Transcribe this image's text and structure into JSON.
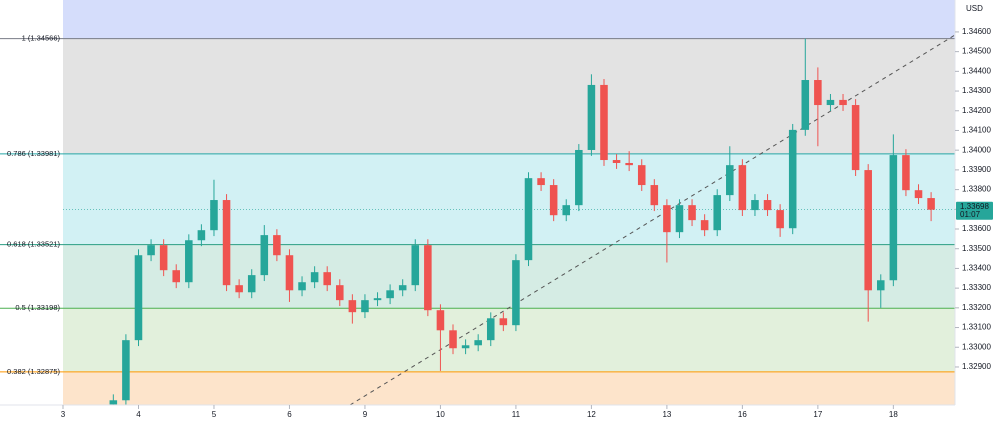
{
  "chart_data": {
    "type": "candlestick",
    "currency": "USD",
    "xlim": [
      0,
      70.9
    ],
    "xticks": [
      {
        "value": 0,
        "label": "3"
      },
      {
        "value": 6,
        "label": "4"
      },
      {
        "value": 12,
        "label": "5"
      },
      {
        "value": 18,
        "label": "6"
      },
      {
        "value": 24,
        "label": "9"
      },
      {
        "value": 30,
        "label": "10"
      },
      {
        "value": 36,
        "label": "11"
      },
      {
        "value": 42,
        "label": "12"
      },
      {
        "value": 48,
        "label": "13"
      },
      {
        "value": 54,
        "label": "16"
      },
      {
        "value": 60,
        "label": "17"
      },
      {
        "value": 66,
        "label": "18"
      }
    ],
    "ylim": [
      1.32707,
      1.34762
    ],
    "yticks": [
      {
        "value": 1.329,
        "label": "1.32900"
      },
      {
        "value": 1.33,
        "label": "1.33000"
      },
      {
        "value": 1.331,
        "label": "1.33100"
      },
      {
        "value": 1.332,
        "label": "1.33200"
      },
      {
        "value": 1.333,
        "label": "1.33300"
      },
      {
        "value": 1.334,
        "label": "1.33400"
      },
      {
        "value": 1.335,
        "label": "1.33500"
      },
      {
        "value": 1.336,
        "label": "1.33600"
      },
      {
        "value": 1.337,
        "label": "1.33700"
      },
      {
        "value": 1.338,
        "label": "1.33800"
      },
      {
        "value": 1.339,
        "label": "1.33900"
      },
      {
        "value": 1.34,
        "label": "1.34000"
      },
      {
        "value": 1.341,
        "label": "1.34100"
      },
      {
        "value": 1.342,
        "label": "1.34200"
      },
      {
        "value": 1.343,
        "label": "1.34300"
      },
      {
        "value": 1.344,
        "label": "1.34400"
      },
      {
        "value": 1.345,
        "label": "1.34500"
      },
      {
        "value": 1.346,
        "label": "1.34600"
      }
    ],
    "up_color": "#26a69a",
    "down_color": "#ef5350",
    "top_band_color": "#d5ddfb",
    "fib_levels": [
      {
        "label": "1 (1.34566)",
        "value": 1.34566,
        "color": "#787b86",
        "fill": "#e3e3e3"
      },
      {
        "label": "0.786 (1.33981)",
        "value": 1.33981,
        "color": "#26a6a6",
        "fill": "#d2f1f4"
      },
      {
        "label": "0.618 (1.33521)",
        "value": 1.33521,
        "color": "#2a9d82",
        "fill": "#d5ece4"
      },
      {
        "label": "0.5 (1.33198)",
        "value": 1.33198,
        "color": "#4caf50",
        "fill": "#e2f0dc"
      },
      {
        "label": "0.382 (1.32875)",
        "value": 1.32875,
        "color": "#ff9800",
        "fill": "#fde4cb"
      }
    ],
    "last_price": 1.33698,
    "countdown": "01:07",
    "candles": {
      "x": [
        4,
        5,
        6,
        7,
        8,
        9,
        10,
        11,
        12,
        13,
        14,
        15,
        16,
        17,
        18,
        19,
        20,
        21,
        22,
        23,
        24,
        25,
        26,
        27,
        28,
        29,
        30,
        31,
        32,
        33,
        34,
        35,
        36,
        37,
        38,
        39,
        40,
        41,
        42,
        43,
        44,
        45,
        46,
        47,
        48,
        49,
        50,
        51,
        52,
        53,
        54,
        55,
        56,
        57,
        58,
        59,
        60,
        61,
        62,
        63,
        64,
        65,
        66,
        67,
        68,
        69
      ],
      "open": [
        1.3271,
        1.32731,
        1.33036,
        1.33467,
        1.33518,
        1.33391,
        1.3333,
        1.33543,
        1.33594,
        1.33747,
        1.33315,
        1.33279,
        1.33366,
        1.33569,
        1.33467,
        1.33289,
        1.3333,
        1.33381,
        1.33315,
        1.33239,
        1.33178,
        1.33239,
        1.33249,
        1.33289,
        1.33315,
        1.33518,
        1.33188,
        1.33086,
        1.32995,
        1.3301,
        1.33036,
        1.33147,
        1.33112,
        1.33442,
        1.33858,
        1.33823,
        1.3367,
        1.33721,
        1.34001,
        1.34331,
        1.3395,
        1.33935,
        1.33924,
        1.33823,
        1.33721,
        1.33584,
        1.33721,
        1.33645,
        1.33594,
        1.33772,
        1.33924,
        1.33696,
        1.33747,
        1.33696,
        1.33604,
        1.34103,
        1.34356,
        1.34229,
        1.34255,
        1.34229,
        1.33899,
        1.33289,
        1.3334,
        1.33975,
        1.33797,
        1.33757
      ],
      "high": [
        1.32761,
        1.33066,
        1.33497,
        1.33548,
        1.33548,
        1.33421,
        1.33573,
        1.33624,
        1.3385,
        1.33777,
        1.33345,
        1.33396,
        1.3362,
        1.33599,
        1.33497,
        1.3336,
        1.33411,
        1.33411,
        1.33345,
        1.33269,
        1.33269,
        1.33279,
        1.33319,
        1.33345,
        1.33548,
        1.33548,
        1.33218,
        1.33116,
        1.3304,
        1.33066,
        1.33177,
        1.33177,
        1.33472,
        1.33888,
        1.33888,
        1.33853,
        1.33751,
        1.34031,
        1.34385,
        1.34361,
        1.3398,
        1.33995,
        1.33954,
        1.33853,
        1.33751,
        1.33751,
        1.33751,
        1.33675,
        1.33802,
        1.3402,
        1.33954,
        1.33777,
        1.33777,
        1.33726,
        1.34133,
        1.34566,
        1.3442,
        1.34285,
        1.34285,
        1.34259,
        1.33929,
        1.3337,
        1.3408,
        1.34005,
        1.33827,
        1.33787
      ],
      "low": [
        1.3268,
        1.32701,
        1.33006,
        1.33437,
        1.33361,
        1.333,
        1.333,
        1.33513,
        1.33564,
        1.33285,
        1.33249,
        1.33249,
        1.33336,
        1.33437,
        1.3323,
        1.33259,
        1.333,
        1.33285,
        1.33209,
        1.3312,
        1.33148,
        1.33209,
        1.33219,
        1.33259,
        1.33285,
        1.33158,
        1.3288,
        1.32965,
        1.32965,
        1.3298,
        1.33006,
        1.33082,
        1.33082,
        1.33412,
        1.33793,
        1.3364,
        1.3364,
        1.33691,
        1.33971,
        1.3392,
        1.33905,
        1.33894,
        1.33793,
        1.33691,
        1.3343,
        1.33554,
        1.33615,
        1.33564,
        1.33564,
        1.33742,
        1.33666,
        1.33666,
        1.33666,
        1.3356,
        1.33574,
        1.34073,
        1.3402,
        1.34199,
        1.34199,
        1.33869,
        1.3313,
        1.332,
        1.3331,
        1.33767,
        1.33727,
        1.3364
      ],
      "close": [
        1.32731,
        1.33036,
        1.33467,
        1.33518,
        1.33391,
        1.3333,
        1.33543,
        1.33594,
        1.33747,
        1.33315,
        1.33279,
        1.33366,
        1.33569,
        1.33467,
        1.33289,
        1.3333,
        1.33381,
        1.33315,
        1.33239,
        1.33178,
        1.33239,
        1.33249,
        1.33289,
        1.33315,
        1.33518,
        1.33188,
        1.33086,
        1.32995,
        1.3301,
        1.33036,
        1.33147,
        1.33112,
        1.33442,
        1.33858,
        1.33823,
        1.3367,
        1.33721,
        1.34001,
        1.34331,
        1.3395,
        1.33935,
        1.33924,
        1.33823,
        1.33721,
        1.33584,
        1.33721,
        1.33645,
        1.33594,
        1.33772,
        1.33924,
        1.33696,
        1.33747,
        1.33696,
        1.33604,
        1.34103,
        1.34356,
        1.34229,
        1.34255,
        1.34229,
        1.33899,
        1.33289,
        1.3334,
        1.33975,
        1.33797,
        1.33757,
        1.33698
      ]
    }
  }
}
